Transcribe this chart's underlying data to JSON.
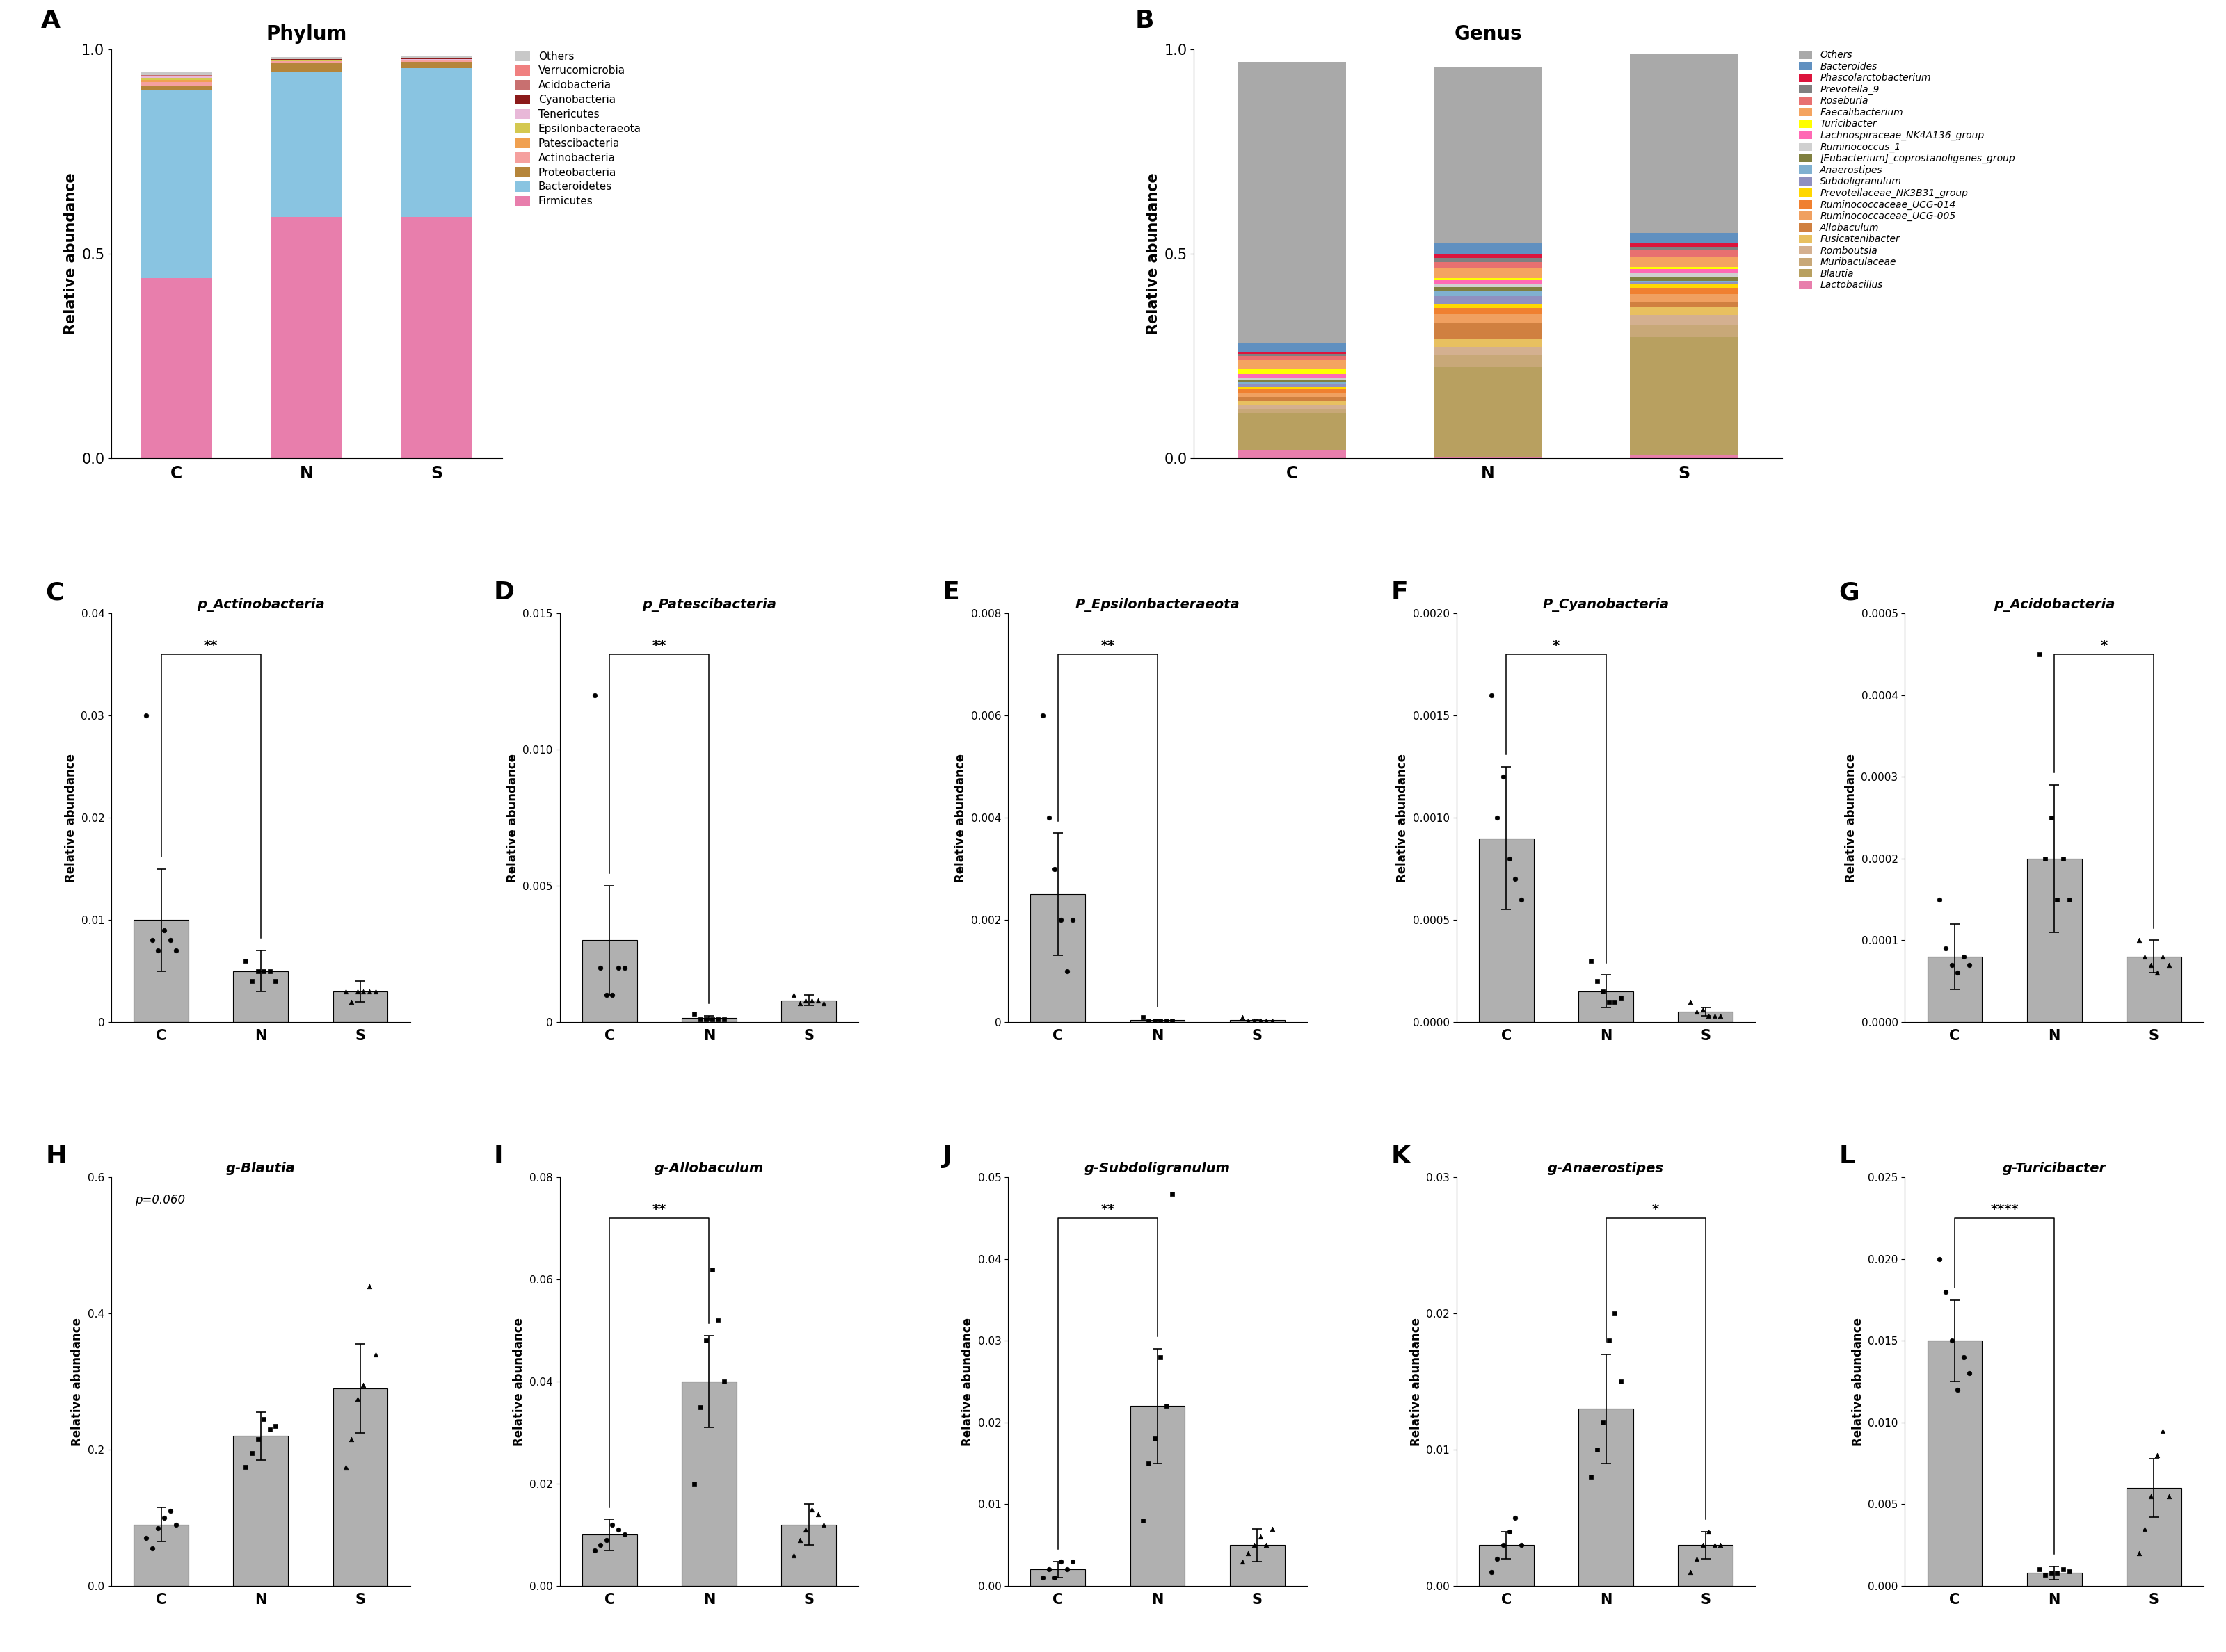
{
  "phylum_labels": [
    "C",
    "N",
    "S"
  ],
  "phylum_taxa": [
    "Firmicutes",
    "Bacteroidetes",
    "Proteobacteria",
    "Actinobacteria",
    "Patescibacteria",
    "Epsilonbacteraeota",
    "Tenericutes",
    "Cyanobacteria",
    "Acidobacteria",
    "Verrucomicrobia",
    "Others"
  ],
  "phylum_colors": [
    "#E87EAC",
    "#89C4E1",
    "#B5853A",
    "#F5A09E",
    "#F0A050",
    "#D4C850",
    "#E8B8D8",
    "#8B1A1A",
    "#C87070",
    "#F08080",
    "#C8C8C8"
  ],
  "phylum_data": {
    "C": [
      0.44,
      0.46,
      0.01,
      0.01,
      0.005,
      0.005,
      0.004,
      0.002,
      0.001,
      0.001,
      0.008
    ],
    "N": [
      0.59,
      0.355,
      0.022,
      0.004,
      0.001,
      0.0005,
      0.003,
      0.001,
      0.0005,
      0.0005,
      0.005
    ],
    "S": [
      0.59,
      0.365,
      0.015,
      0.003,
      0.001,
      0.0005,
      0.003,
      0.001,
      0.0005,
      0.0005,
      0.005
    ]
  },
  "genus_taxa": [
    "Lactobacillus",
    "Blautia",
    "Muribaculaceae",
    "Romboutsia",
    "Fusicatenibacter",
    "Allobaculum",
    "Ruminococcaceae_UCG-005",
    "Ruminococcaceae_UCG-014",
    "Prevotellaceae_NK3B31_group",
    "Subdoligranulum",
    "Anaerostipes",
    "[Eubacterium]_coprostanoligenes_group",
    "Ruminococcus_1",
    "Lachnospiraceae_NK4A136_group",
    "Turicibacter",
    "Faecalibacterium",
    "Roseburia",
    "Prevotella_9",
    "Phascolarctobacterium",
    "Bacteroides",
    "Others"
  ],
  "genus_colors": [
    "#E87EAC",
    "#B8A060",
    "#C8A878",
    "#D4B090",
    "#E8C060",
    "#D08040",
    "#F0A060",
    "#F08030",
    "#FFD700",
    "#9090C0",
    "#80B0D0",
    "#808040",
    "#D0D0D0",
    "#FF69B4",
    "#FFFF00",
    "#F4A460",
    "#E87070",
    "#808080",
    "#DC143C",
    "#6090C0",
    "#A9A9A9"
  ],
  "genus_data": {
    "C": [
      0.02,
      0.09,
      0.01,
      0.01,
      0.01,
      0.01,
      0.01,
      0.01,
      0.005,
      0.005,
      0.005,
      0.005,
      0.005,
      0.01,
      0.015,
      0.02,
      0.01,
      0.005,
      0.005,
      0.02,
      0.69
    ],
    "N": [
      0.002,
      0.22,
      0.03,
      0.02,
      0.02,
      0.04,
      0.02,
      0.015,
      0.01,
      0.02,
      0.012,
      0.01,
      0.008,
      0.01,
      0.003,
      0.025,
      0.015,
      0.01,
      0.008,
      0.03,
      0.43
    ],
    "S": [
      0.006,
      0.29,
      0.03,
      0.025,
      0.02,
      0.01,
      0.02,
      0.015,
      0.01,
      0.005,
      0.003,
      0.01,
      0.008,
      0.01,
      0.006,
      0.025,
      0.015,
      0.01,
      0.008,
      0.025,
      0.44
    ]
  },
  "genus_labels": [
    "C",
    "N",
    "S"
  ],
  "panel_C": {
    "title": "p_Actinobacteria",
    "groups": [
      "C",
      "N",
      "S"
    ],
    "means": [
      0.01,
      0.005,
      0.003
    ],
    "sems": [
      0.005,
      0.002,
      0.001
    ],
    "points": {
      "C": [
        0.03,
        0.008,
        0.007,
        0.009,
        0.008,
        0.007
      ],
      "N": [
        0.006,
        0.004,
        0.005,
        0.005,
        0.005,
        0.004
      ],
      "S": [
        0.003,
        0.002,
        0.003,
        0.003,
        0.003,
        0.003
      ]
    },
    "ylim": [
      0,
      0.04
    ],
    "yticks": [
      0,
      0.01,
      0.02,
      0.03,
      0.04
    ],
    "ytick_labels": [
      "0",
      "0.01",
      "0.02",
      "0.03",
      "0.04"
    ],
    "sig_bars": [
      [
        "C",
        "N",
        "**"
      ]
    ],
    "ylabel": "Relative abundance"
  },
  "panel_D": {
    "title": "p_Patescibacteria",
    "groups": [
      "C",
      "N",
      "S"
    ],
    "means": [
      0.003,
      0.00015,
      0.0008
    ],
    "sems": [
      0.002,
      8e-05,
      0.0002
    ],
    "points": {
      "C": [
        0.012,
        0.002,
        0.001,
        0.001,
        0.002,
        0.002
      ],
      "N": [
        0.0003,
        0.0001,
        0.0001,
        0.0001,
        0.0001,
        0.0001
      ],
      "S": [
        0.001,
        0.0007,
        0.0008,
        0.0008,
        0.0008,
        0.0007
      ]
    },
    "ylim": [
      0,
      0.015
    ],
    "yticks": [
      0,
      0.005,
      0.01,
      0.015
    ],
    "ytick_labels": [
      "0",
      "0.005",
      "0.010",
      "0.015"
    ],
    "sig_bars": [
      [
        "C",
        "N",
        "**"
      ]
    ],
    "ylabel": "Relative abundance"
  },
  "panel_E": {
    "title": "P_Epsilonbacteraeota",
    "groups": [
      "C",
      "N",
      "S"
    ],
    "means": [
      0.0025,
      4e-05,
      4e-05
    ],
    "sems": [
      0.0012,
      2e-05,
      2e-05
    ],
    "points": {
      "C": [
        0.006,
        0.004,
        0.003,
        0.002,
        0.001,
        0.002
      ],
      "N": [
        0.0001,
        3e-05,
        3e-05,
        3e-05,
        3e-05,
        3e-05
      ],
      "S": [
        0.0001,
        3e-05,
        3e-05,
        3e-05,
        3e-05,
        3e-05
      ]
    },
    "ylim": [
      0,
      0.008
    ],
    "yticks": [
      0,
      0.002,
      0.004,
      0.006,
      0.008
    ],
    "ytick_labels": [
      "0",
      "0.002",
      "0.004",
      "0.006",
      "0.008"
    ],
    "sig_bars": [
      [
        "C",
        "N",
        "**"
      ]
    ],
    "ylabel": "Relative abundance"
  },
  "panel_F": {
    "title": "P_Cyanobacteria",
    "groups": [
      "C",
      "N",
      "S"
    ],
    "means": [
      0.0009,
      0.00015,
      5e-05
    ],
    "sems": [
      0.00035,
      8e-05,
      2e-05
    ],
    "points": {
      "C": [
        0.0016,
        0.001,
        0.0012,
        0.0008,
        0.0007,
        0.0006
      ],
      "N": [
        0.0003,
        0.0002,
        0.00015,
        0.0001,
        0.0001,
        0.00012
      ],
      "S": [
        0.0001,
        5e-05,
        6e-05,
        3e-05,
        3e-05,
        3e-05
      ]
    },
    "ylim": [
      0,
      0.002
    ],
    "yticks": [
      0.0,
      0.0005,
      0.001,
      0.0015,
      0.002
    ],
    "ytick_labels": [
      "0.0000",
      "0.0005",
      "0.0010",
      "0.0015",
      "0.0020"
    ],
    "sig_bars": [
      [
        "C",
        "N",
        "*"
      ]
    ],
    "ylabel": "Relative abundance"
  },
  "panel_G": {
    "title": "p_Acidobacteria",
    "groups": [
      "C",
      "N",
      "S"
    ],
    "means": [
      8e-05,
      0.0002,
      8e-05
    ],
    "sems": [
      4e-05,
      9e-05,
      2e-05
    ],
    "points": {
      "C": [
        0.00015,
        9e-05,
        7e-05,
        6e-05,
        8e-05,
        7e-05
      ],
      "N": [
        0.00045,
        0.0002,
        0.00025,
        0.00015,
        0.0002,
        0.00015
      ],
      "S": [
        0.0001,
        8e-05,
        7e-05,
        6e-05,
        8e-05,
        7e-05
      ]
    },
    "ylim": [
      0,
      0.0005
    ],
    "yticks": [
      0.0,
      0.0001,
      0.0002,
      0.0003,
      0.0004,
      0.0005
    ],
    "ytick_labels": [
      "0.0000",
      "0.0001",
      "0.0002",
      "0.0003",
      "0.0004",
      "0.0005"
    ],
    "sig_bars": [
      [
        "N",
        "S",
        "*"
      ]
    ],
    "ylabel": "Relative abundance"
  },
  "panel_H": {
    "title": "g-Blautia",
    "groups": [
      "C",
      "N",
      "S"
    ],
    "means": [
      0.09,
      0.22,
      0.29
    ],
    "sems": [
      0.025,
      0.035,
      0.065
    ],
    "points": {
      "C": [
        0.07,
        0.055,
        0.085,
        0.1,
        0.11,
        0.09
      ],
      "N": [
        0.175,
        0.195,
        0.215,
        0.245,
        0.23,
        0.235
      ],
      "S": [
        0.175,
        0.215,
        0.275,
        0.295,
        0.44,
        0.34
      ]
    },
    "ylim": [
      0,
      0.6
    ],
    "yticks": [
      0.0,
      0.2,
      0.4,
      0.6
    ],
    "ytick_labels": [
      "0.0",
      "0.2",
      "0.4",
      "0.6"
    ],
    "sig_bars": [],
    "sig_text": "p=0.060",
    "ylabel": "Relative abundance"
  },
  "panel_I": {
    "title": "g-Allobaculum",
    "groups": [
      "C",
      "N",
      "S"
    ],
    "means": [
      0.01,
      0.04,
      0.012
    ],
    "sems": [
      0.003,
      0.009,
      0.004
    ],
    "points": {
      "C": [
        0.007,
        0.008,
        0.009,
        0.012,
        0.011,
        0.01
      ],
      "N": [
        0.02,
        0.035,
        0.048,
        0.062,
        0.052,
        0.04
      ],
      "S": [
        0.006,
        0.009,
        0.011,
        0.015,
        0.014,
        0.012
      ]
    },
    "ylim": [
      0,
      0.08
    ],
    "yticks": [
      0.0,
      0.02,
      0.04,
      0.06,
      0.08
    ],
    "ytick_labels": [
      "0.00",
      "0.02",
      "0.04",
      "0.06",
      "0.08"
    ],
    "sig_bars": [
      [
        "C",
        "N",
        "**"
      ]
    ],
    "ylabel": "Relative abundance"
  },
  "panel_J": {
    "title": "g-Subdoligranulum",
    "groups": [
      "C",
      "N",
      "S"
    ],
    "means": [
      0.002,
      0.022,
      0.005
    ],
    "sems": [
      0.001,
      0.007,
      0.002
    ],
    "points": {
      "C": [
        0.001,
        0.002,
        0.001,
        0.003,
        0.002,
        0.003
      ],
      "N": [
        0.008,
        0.015,
        0.018,
        0.028,
        0.022,
        0.048
      ],
      "S": [
        0.003,
        0.004,
        0.005,
        0.006,
        0.005,
        0.007
      ]
    },
    "ylim": [
      0,
      0.05
    ],
    "yticks": [
      0.0,
      0.01,
      0.02,
      0.03,
      0.04,
      0.05
    ],
    "ytick_labels": [
      "0.00",
      "0.01",
      "0.02",
      "0.03",
      "0.04",
      "0.05"
    ],
    "sig_bars": [
      [
        "C",
        "N",
        "**"
      ]
    ],
    "ylabel": "Relative abundance"
  },
  "panel_K": {
    "title": "g-Anaerostipes",
    "groups": [
      "C",
      "N",
      "S"
    ],
    "means": [
      0.003,
      0.013,
      0.003
    ],
    "sems": [
      0.001,
      0.004,
      0.001
    ],
    "points": {
      "C": [
        0.001,
        0.002,
        0.003,
        0.004,
        0.005,
        0.003
      ],
      "N": [
        0.008,
        0.01,
        0.012,
        0.018,
        0.02,
        0.015
      ],
      "S": [
        0.001,
        0.002,
        0.003,
        0.004,
        0.003,
        0.003
      ]
    },
    "ylim": [
      0,
      0.03
    ],
    "yticks": [
      0.0,
      0.01,
      0.02,
      0.03
    ],
    "ytick_labels": [
      "0.00",
      "0.01",
      "0.02",
      "0.03"
    ],
    "sig_bars": [
      [
        "N",
        "S",
        "*"
      ]
    ],
    "ylabel": "Relative abundance"
  },
  "panel_L": {
    "title": "g-Turicibacter",
    "groups": [
      "C",
      "N",
      "S"
    ],
    "means": [
      0.015,
      0.0008,
      0.006
    ],
    "sems": [
      0.0025,
      0.0004,
      0.0018
    ],
    "points": {
      "C": [
        0.02,
        0.018,
        0.015,
        0.012,
        0.014,
        0.013
      ],
      "N": [
        0.001,
        0.0007,
        0.0008,
        0.0008,
        0.001,
        0.0009
      ],
      "S": [
        0.002,
        0.0035,
        0.0055,
        0.008,
        0.0095,
        0.0055
      ]
    },
    "ylim": [
      0,
      0.025
    ],
    "yticks": [
      0.0,
      0.005,
      0.01,
      0.015,
      0.02,
      0.025
    ],
    "ytick_labels": [
      "0.000",
      "0.005",
      "0.010",
      "0.015",
      "0.020",
      "0.025"
    ],
    "sig_bars": [
      [
        "C",
        "N",
        "****"
      ]
    ],
    "ylabel": "Relative abundance"
  }
}
